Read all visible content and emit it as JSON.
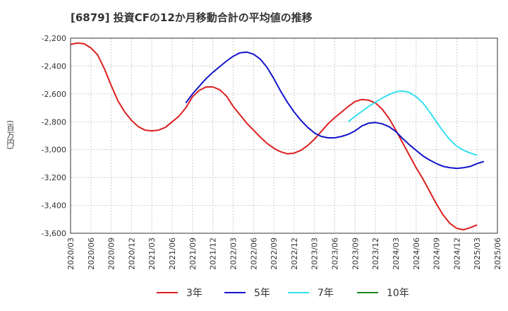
{
  "chart_data": {
    "type": "line",
    "title": "[6879]  投資CFの12か月移動合計の平均値の推移",
    "ylabel": "(百万円)",
    "xlabel": "",
    "ylim": [
      -3600,
      -2200
    ],
    "yticks": [
      -2200,
      -2400,
      -2600,
      -2800,
      -3000,
      -3200,
      -3400,
      -3600
    ],
    "ytick_labels": [
      "-2,200",
      "-2,400",
      "-2,600",
      "-2,800",
      "-3,000",
      "-3,200",
      "-3,400",
      "-3,600"
    ],
    "xticks": [
      "2020/03",
      "2020/06",
      "2020/09",
      "2020/12",
      "2021/03",
      "2021/06",
      "2021/09",
      "2021/12",
      "2022/03",
      "2022/06",
      "2022/09",
      "2022/12",
      "2023/03",
      "2023/06",
      "2023/09",
      "2023/12",
      "2024/03",
      "2024/06",
      "2024/09",
      "2024/12",
      "2025/03",
      "2025/06"
    ],
    "grid": true,
    "legend_position": "bottom",
    "x_start": "2020/03",
    "series": [
      {
        "name": "3年",
        "color": "#dd1f1f",
        "start": "2020/03",
        "values": [
          -2245,
          -2235,
          -2240,
          -2270,
          -2320,
          -2420,
          -2540,
          -2650,
          -2730,
          -2790,
          -2835,
          -2860,
          -2865,
          -2860,
          -2840,
          -2800,
          -2760,
          -2700,
          -2620,
          -2575,
          -2550,
          -2550,
          -2570,
          -2615,
          -2690,
          -2750,
          -2810,
          -2860,
          -2910,
          -2955,
          -2990,
          -3015,
          -3030,
          -3025,
          -3005,
          -2970,
          -2925,
          -2870,
          -2815,
          -2770,
          -2730,
          -2690,
          -2655,
          -2640,
          -2645,
          -2665,
          -2710,
          -2775,
          -2860,
          -2950,
          -3040,
          -3130,
          -3210,
          -3300,
          -3390,
          -3470,
          -3530,
          -3565,
          -3575,
          -3560,
          -3540
        ]
      },
      {
        "name": "5年",
        "color": "#1414c8",
        "start": "2021/08",
        "values": [
          -2665,
          -2600,
          -2545,
          -2490,
          -2445,
          -2405,
          -2365,
          -2330,
          -2305,
          -2300,
          -2315,
          -2350,
          -2410,
          -2490,
          -2580,
          -2660,
          -2730,
          -2790,
          -2840,
          -2880,
          -2905,
          -2915,
          -2915,
          -2905,
          -2890,
          -2865,
          -2830,
          -2810,
          -2805,
          -2815,
          -2835,
          -2870,
          -2920,
          -2965,
          -3005,
          -3045,
          -3075,
          -3100,
          -3120,
          -3130,
          -3135,
          -3130,
          -3120,
          -3100,
          -3085
        ]
      },
      {
        "name": "7年",
        "color": "#33e0f0",
        "start": "2023/08",
        "values": [
          -2800,
          -2760,
          -2725,
          -2690,
          -2660,
          -2630,
          -2605,
          -2585,
          -2580,
          -2590,
          -2620,
          -2665,
          -2730,
          -2800,
          -2870,
          -2930,
          -2975,
          -3005,
          -3025,
          -3040
        ]
      },
      {
        "name": "10年",
        "color": "#1a8a1a",
        "start": "",
        "values": []
      }
    ]
  }
}
